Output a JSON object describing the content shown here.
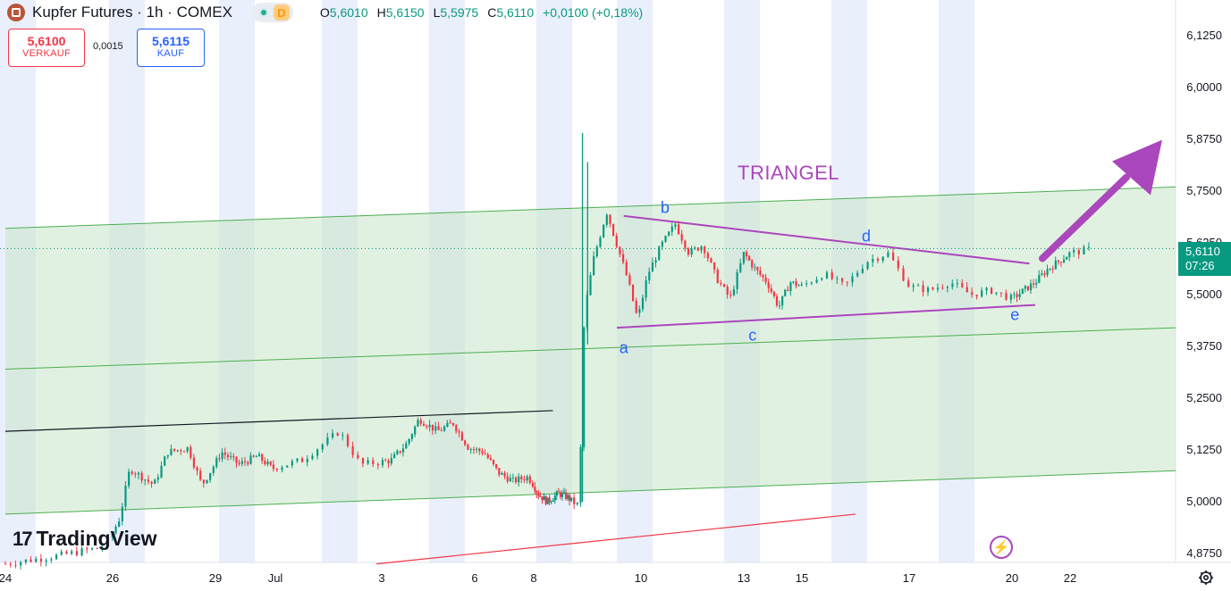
{
  "header": {
    "title": "Kupfer Futures · 1h · COMEX",
    "badge": "D",
    "ohlc": {
      "o_label": "O",
      "o_value": "5,6010",
      "h_label": "H",
      "h_value": "5,6150",
      "l_label": "L",
      "l_value": "5,5975",
      "c_label": "C",
      "c_value": "5,6110",
      "change": "+0,0100 (+0,18%)"
    }
  },
  "trade": {
    "sell_price": "5,6100",
    "sell_label": "VERKAUF",
    "spread": "0,0015",
    "buy_price": "5,6115",
    "buy_label": "KAUF"
  },
  "price_axis": {
    "labels": [
      "6,1250",
      "6,0000",
      "5,8750",
      "5,7500",
      "5,6250",
      "5,5000",
      "5,3750",
      "5,2500",
      "5,1250",
      "5,0000",
      "4,8750"
    ],
    "last_price": "5,6110",
    "countdown": "07:26"
  },
  "time_axis": {
    "labels": [
      "24",
      "26",
      "29",
      "Jul",
      "3",
      "6",
      "8",
      "10",
      "13",
      "15",
      "17",
      "20",
      "22"
    ]
  },
  "annotations": {
    "title": "TRIANGEL",
    "wave_labels": [
      "a",
      "b",
      "c",
      "d",
      "e"
    ]
  },
  "logo": {
    "mark": "17",
    "text": "TradingView"
  },
  "icons": {
    "flash": "lightning-icon",
    "settings": "gear-icon"
  },
  "colors": {
    "up": "#089981",
    "down": "#f23645",
    "channel": "#4caf50",
    "triangle": "#ab47bc",
    "label": "#2962ff",
    "session": "#e3e9fb"
  },
  "chart_data": {
    "type": "candlestick",
    "symbol": "Kupfer Futures",
    "interval": "1h",
    "exchange": "COMEX",
    "y_range": [
      4.85,
      6.15
    ],
    "y_ticks": [
      6.125,
      6.0,
      5.875,
      5.75,
      5.625,
      5.5,
      5.375,
      5.25,
      5.125,
      5.0,
      4.875
    ],
    "x_ticks": [
      "24",
      "26",
      "29",
      "Jul",
      "3",
      "6",
      "8",
      "10",
      "13",
      "15",
      "17",
      "20",
      "22"
    ],
    "last_close": 5.611,
    "price_path": [
      [
        24,
        4.85
      ],
      [
        25,
        4.87
      ],
      [
        25.8,
        4.89
      ],
      [
        26.2,
        4.96
      ],
      [
        26.5,
        5.08
      ],
      [
        27.2,
        5.04
      ],
      [
        27.6,
        5.12
      ],
      [
        28.2,
        5.13
      ],
      [
        28.6,
        5.04
      ],
      [
        29.2,
        5.12
      ],
      [
        29.8,
        5.09
      ],
      [
        30.4,
        5.11
      ],
      [
        30.9,
        5.08
      ],
      [
        31.5,
        5.1
      ],
      [
        32.2,
        5.17
      ],
      [
        32.6,
        5.09
      ],
      [
        33.3,
        5.1
      ],
      [
        33.8,
        5.14
      ],
      [
        34.2,
        5.2
      ],
      [
        34.8,
        5.17
      ],
      [
        35.3,
        5.19
      ],
      [
        35.8,
        5.13
      ],
      [
        36.3,
        5.12
      ],
      [
        36.8,
        5.07
      ],
      [
        37.3,
        5.05
      ],
      [
        37.8,
        5.06
      ],
      [
        38.2,
        5.02
      ],
      [
        38.7,
        5.0
      ],
      [
        39.3,
        5.02
      ],
      [
        39.8,
        5.01
      ],
      [
        40.2,
        4.99
      ],
      [
        40.35,
        5.45
      ],
      [
        40.6,
        5.58
      ],
      [
        41.0,
        5.7
      ],
      [
        41.6,
        5.54
      ],
      [
        41.9,
        5.44
      ],
      [
        42.2,
        5.55
      ],
      [
        42.6,
        5.62
      ],
      [
        43.0,
        5.67
      ],
      [
        43.4,
        5.6
      ],
      [
        43.8,
        5.62
      ],
      [
        44.2,
        5.54
      ],
      [
        44.6,
        5.49
      ],
      [
        45.0,
        5.6
      ],
      [
        45.4,
        5.56
      ],
      [
        45.8,
        5.53
      ],
      [
        46.2,
        5.47
      ],
      [
        46.6,
        5.53
      ],
      [
        47.0,
        5.52
      ],
      [
        47.4,
        5.55
      ],
      [
        47.8,
        5.52
      ],
      [
        48.2,
        5.58
      ],
      [
        48.6,
        5.6
      ],
      [
        49.0,
        5.52
      ],
      [
        49.4,
        5.51
      ],
      [
        49.8,
        5.53
      ],
      [
        50.2,
        5.5
      ],
      [
        50.6,
        5.51
      ],
      [
        51.0,
        5.49
      ],
      [
        51.4,
        5.51
      ],
      [
        51.8,
        5.53
      ],
      [
        52.2,
        5.56
      ],
      [
        52.6,
        5.58
      ],
      [
        53.0,
        5.6
      ],
      [
        53.4,
        5.61
      ]
    ],
    "drawings": [
      {
        "name": "channel-upper",
        "from": [
          24,
          5.66
        ],
        "to": [
          55,
          5.76
        ]
      },
      {
        "name": "channel-middle",
        "from": [
          24,
          5.32
        ],
        "to": [
          55,
          5.42
        ]
      },
      {
        "name": "channel-lower",
        "from": [
          24,
          4.97
        ],
        "to": [
          55,
          5.075
        ]
      },
      {
        "name": "black-resistance",
        "from": [
          24,
          5.17
        ],
        "to": [
          39,
          5.22
        ]
      },
      {
        "name": "red-support",
        "from": [
          32.9,
          4.85
        ],
        "to": [
          48,
          4.97
        ]
      },
      {
        "name": "triangle-upper",
        "from": [
          41.5,
          5.69
        ],
        "to": [
          51.6,
          5.575
        ]
      },
      {
        "name": "triangle-lower",
        "from": [
          41.3,
          5.42
        ],
        "to": [
          51.8,
          5.475
        ]
      }
    ],
    "wave_points": [
      {
        "label": "a",
        "x": 41.5,
        "y": 5.37
      },
      {
        "label": "b",
        "x": 42.7,
        "y": 5.71
      },
      {
        "label": "c",
        "x": 45.3,
        "y": 5.4
      },
      {
        "label": "d",
        "x": 48.2,
        "y": 5.64
      },
      {
        "label": "e",
        "x": 51.1,
        "y": 5.45
      }
    ],
    "breakout_arrow": {
      "from": [
        51.8,
        5.57
      ],
      "to": [
        55,
        5.88
      ]
    }
  }
}
